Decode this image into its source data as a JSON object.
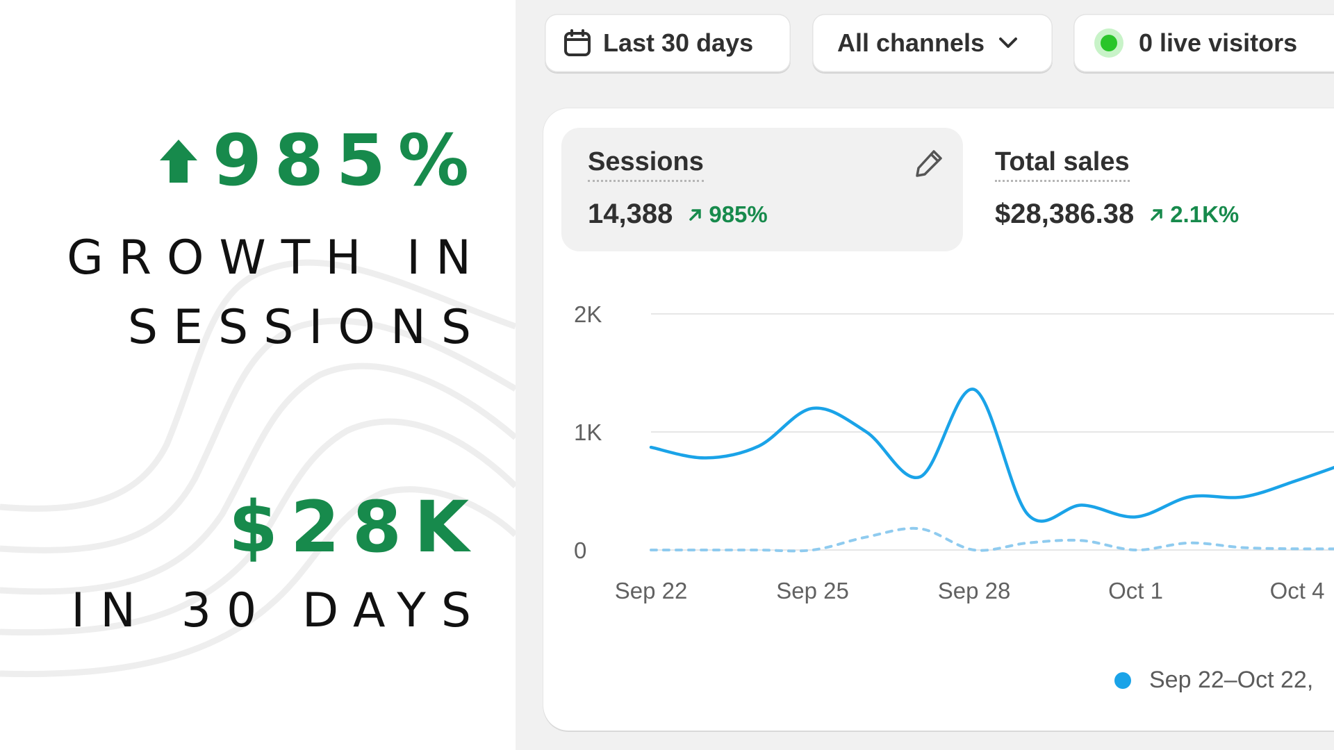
{
  "promo": {
    "stat1_value": "985%",
    "stat1_caption_line1": "GROWTH IN",
    "stat1_caption_line2": "SESSIONS",
    "stat2_value": "$28K",
    "stat2_caption": "IN 30 DAYS",
    "accent_color": "#178a4c"
  },
  "filters": {
    "date_range": {
      "label": "Last 30 days",
      "icon": "calendar-icon"
    },
    "channels": {
      "label": "All channels",
      "icon": "chevron-down-icon"
    },
    "live": {
      "label": "0 live visitors",
      "status_color": "#2ac52a"
    }
  },
  "metrics": [
    {
      "label": "Sessions",
      "value": "14,388",
      "change": "985%",
      "selected": true,
      "icon": "pencil-icon"
    },
    {
      "label": "Total sales",
      "value": "$28,386.38",
      "change": "2.1K%",
      "selected": false
    }
  ],
  "chart_data": {
    "type": "line",
    "y_ticks": [
      "2K",
      "1K",
      "0"
    ],
    "ylim": [
      0,
      2000
    ],
    "x_ticks": [
      "Sep 22",
      "Sep 25",
      "Sep 28",
      "Oct 1",
      "Oct 4"
    ],
    "x": [
      "Sep 22",
      "Sep 23",
      "Sep 24",
      "Sep 25",
      "Sep 26",
      "Sep 27",
      "Sep 28",
      "Sep 29",
      "Sep 30",
      "Oct 1",
      "Oct 2",
      "Oct 3",
      "Oct 4",
      "Oct 5"
    ],
    "series": [
      {
        "name": "Sep 22–Oct 22,",
        "color": "#1aa3e8",
        "style": "solid",
        "values": [
          870,
          780,
          880,
          1200,
          1000,
          620,
          1360,
          300,
          380,
          280,
          450,
          450,
          590,
          750
        ]
      },
      {
        "color": "#8fcbef",
        "style": "dashed",
        "values": [
          0,
          0,
          0,
          0,
          110,
          180,
          0,
          60,
          80,
          0,
          60,
          20,
          10,
          10
        ]
      }
    ],
    "grid": true,
    "legend": "bottom-right"
  }
}
